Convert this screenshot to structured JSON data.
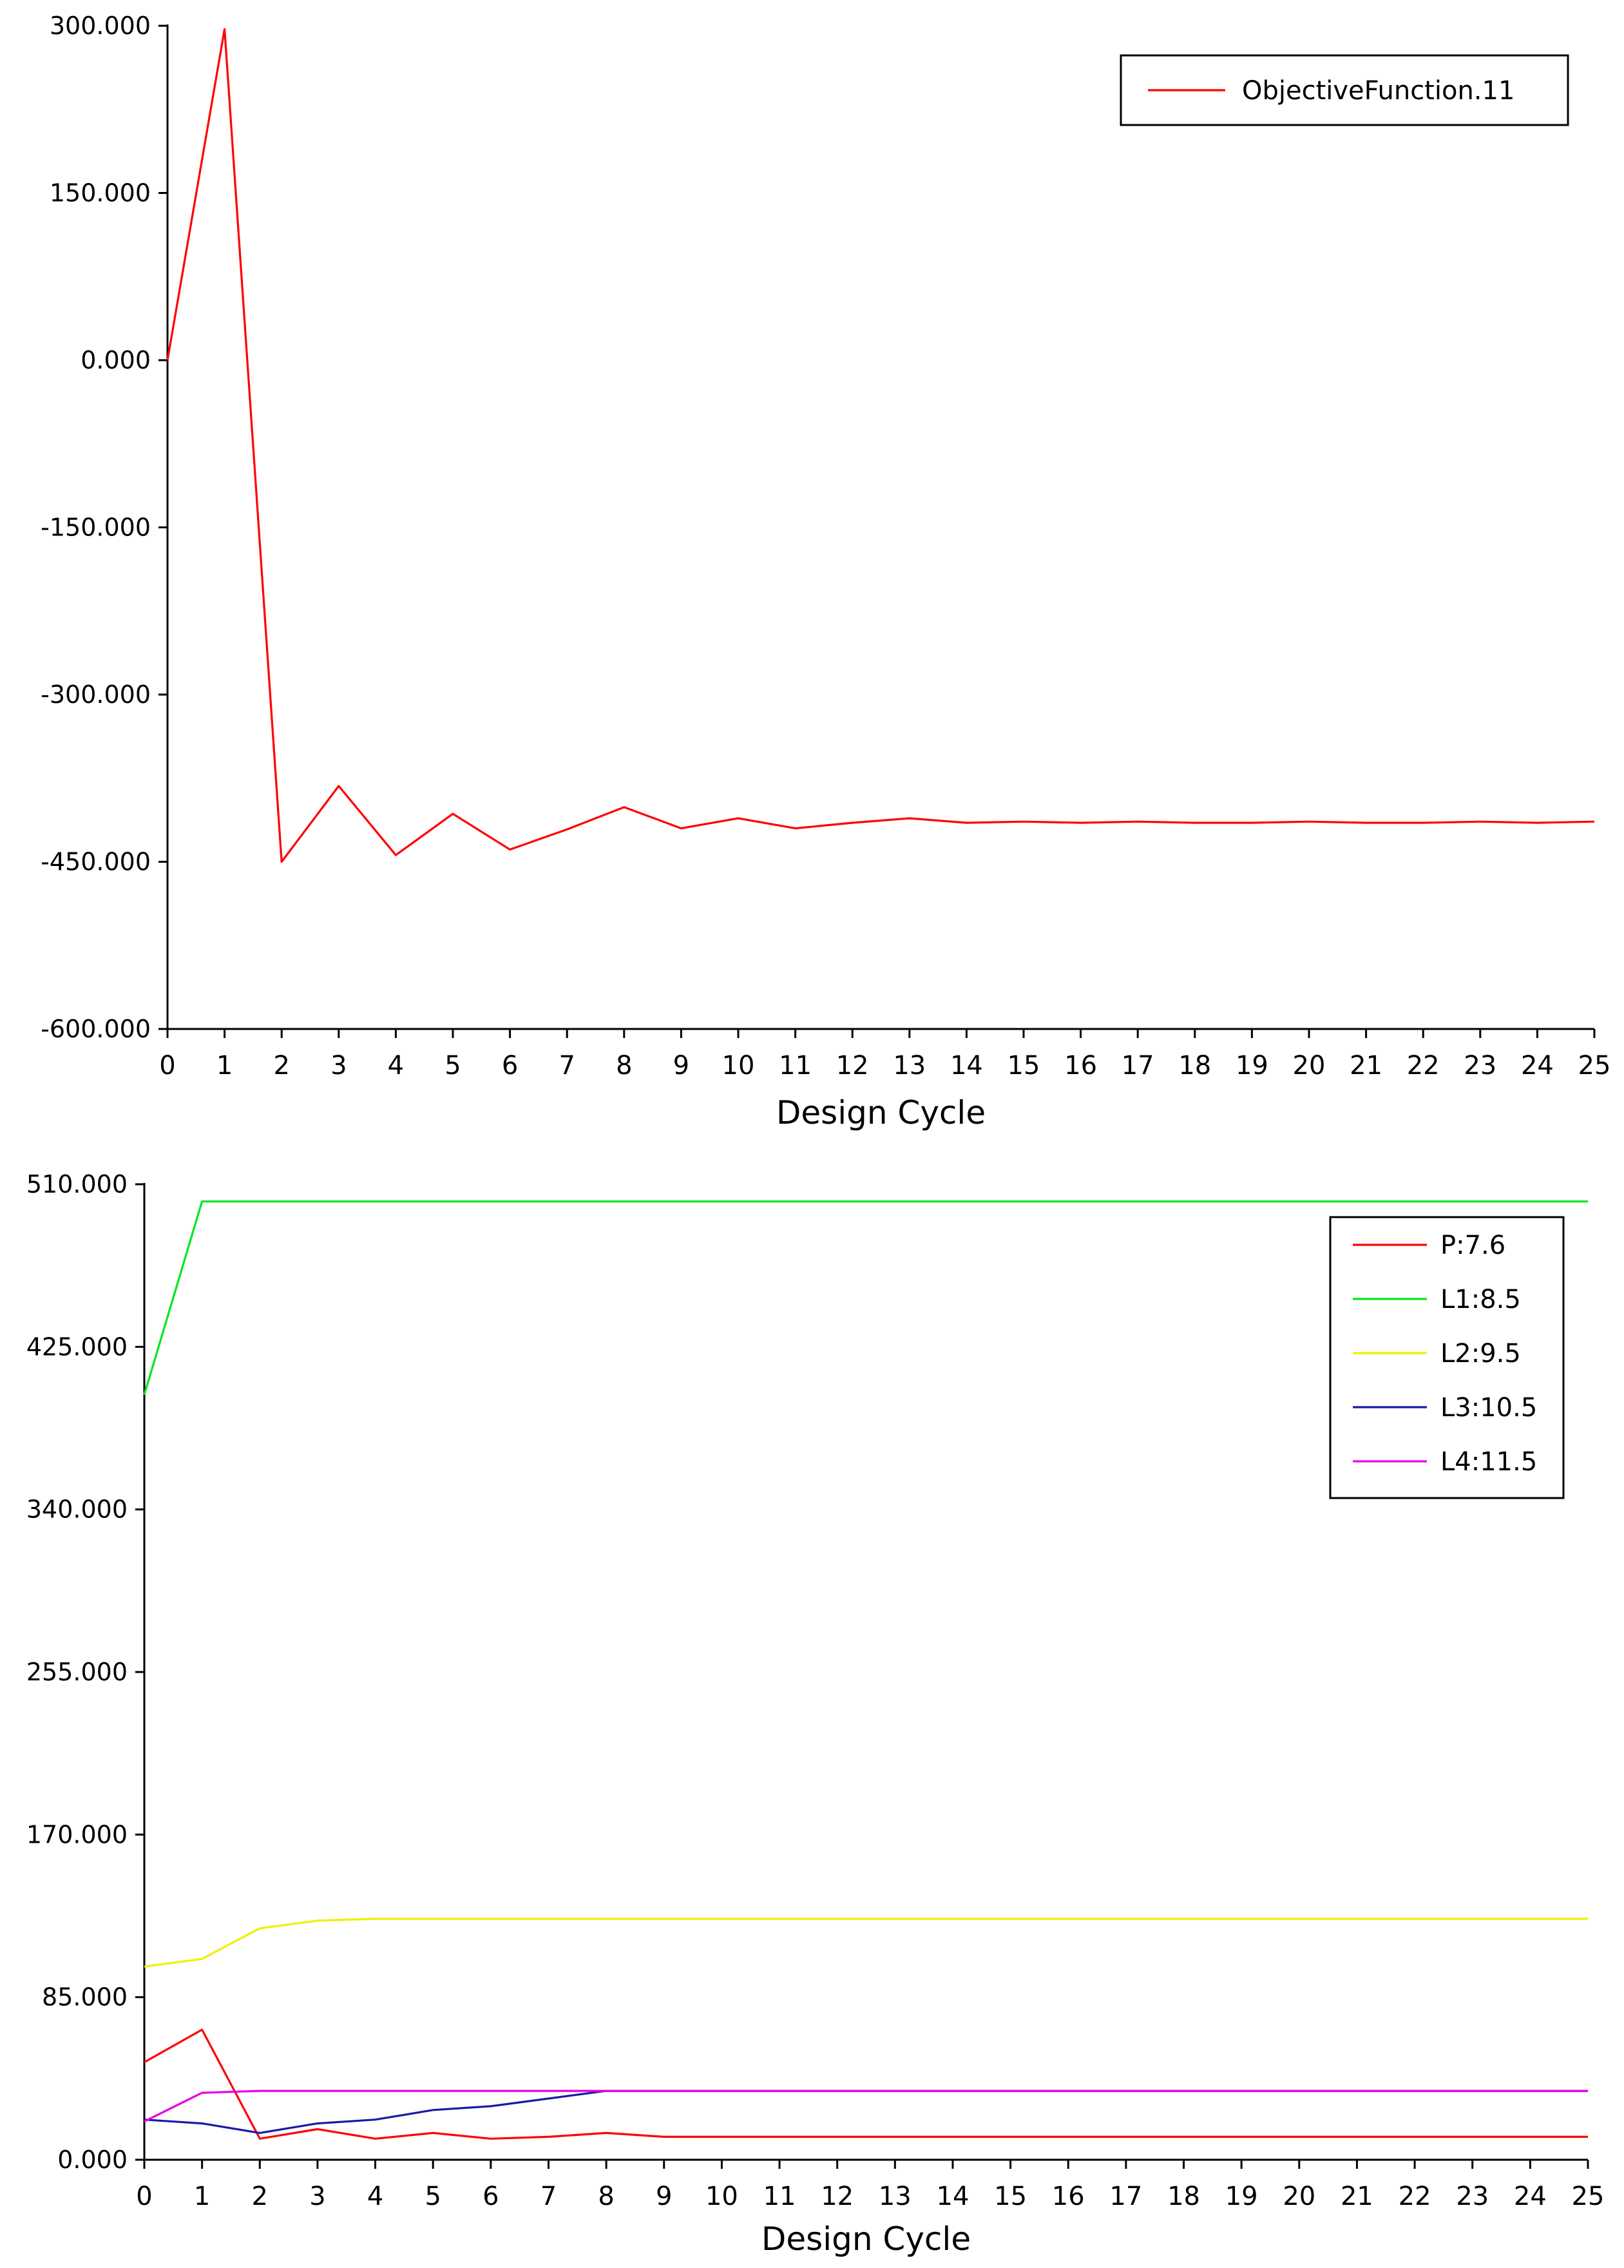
{
  "chart_data": [
    {
      "type": "line",
      "title": "",
      "xlabel": "Design Cycle",
      "ylabel": "",
      "xlim": [
        0,
        25
      ],
      "ylim": [
        -600,
        300
      ],
      "yticks": [
        300,
        150,
        0,
        -150,
        -300,
        -450,
        -600
      ],
      "ytick_labels": [
        "300.000",
        "150.000",
        "0.000",
        "-150.000",
        "-300.000",
        "-450.000",
        "-600.000"
      ],
      "xticks": [
        0,
        1,
        2,
        3,
        4,
        5,
        6,
        7,
        8,
        9,
        10,
        11,
        12,
        13,
        14,
        15,
        16,
        17,
        18,
        19,
        20,
        21,
        22,
        23,
        24,
        25
      ],
      "grid": false,
      "legend_position": "top-right",
      "x": [
        0,
        1,
        2,
        3,
        4,
        5,
        6,
        7,
        8,
        9,
        10,
        11,
        12,
        13,
        14,
        15,
        16,
        17,
        18,
        19,
        20,
        21,
        22,
        23,
        24,
        25
      ],
      "series": [
        {
          "name": "ObjectiveFunction.11",
          "color": "#ff0000",
          "values": [
            0,
            297,
            -450,
            -382,
            -444,
            -407,
            -439,
            -421,
            -401,
            -420,
            -411,
            -420,
            -415,
            -411,
            -415,
            -414,
            -415,
            -414,
            -415,
            -415,
            -414,
            -415,
            -415,
            -414,
            -415,
            -414
          ]
        }
      ]
    },
    {
      "type": "line",
      "title": "",
      "xlabel": "Design Cycle",
      "ylabel": "",
      "xlim": [
        0,
        25
      ],
      "ylim": [
        0,
        510
      ],
      "yticks": [
        510,
        425,
        340,
        255,
        170,
        85,
        0
      ],
      "ytick_labels": [
        "510.000",
        "425.000",
        "340.000",
        "255.000",
        "170.000",
        "85.000",
        "0.000"
      ],
      "xticks": [
        0,
        1,
        2,
        3,
        4,
        5,
        6,
        7,
        8,
        9,
        10,
        11,
        12,
        13,
        14,
        15,
        16,
        17,
        18,
        19,
        20,
        21,
        22,
        23,
        24,
        25
      ],
      "grid": false,
      "legend_position": "top-right",
      "x": [
        0,
        1,
        2,
        3,
        4,
        5,
        6,
        7,
        8,
        9,
        10,
        11,
        12,
        13,
        14,
        15,
        16,
        17,
        18,
        19,
        20,
        21,
        22,
        23,
        24,
        25
      ],
      "series": [
        {
          "name": "P:7.6",
          "color": "#ff0000",
          "values": [
            51,
            68,
            11,
            16,
            11,
            14,
            11,
            12,
            14,
            12,
            12,
            12,
            12,
            12,
            12,
            12,
            12,
            12,
            12,
            12,
            12,
            12,
            12,
            12,
            12,
            12
          ]
        },
        {
          "name": "L1:8.5",
          "color": "#00e626",
          "values": [
            400,
            501,
            501,
            501,
            501,
            501,
            501,
            501,
            501,
            501,
            501,
            501,
            501,
            501,
            501,
            501,
            501,
            501,
            501,
            501,
            501,
            501,
            501,
            501,
            501,
            501
          ]
        },
        {
          "name": "L2:9.5",
          "color": "#f0f000",
          "values": [
            101,
            105,
            121,
            125,
            126,
            126,
            126,
            126,
            126,
            126,
            126,
            126,
            126,
            126,
            126,
            126,
            126,
            126,
            126,
            126,
            126,
            126,
            126,
            126,
            126,
            126
          ]
        },
        {
          "name": "L3:10.5",
          "color": "#1a1aa8",
          "values": [
            21,
            19,
            14,
            19,
            21,
            26,
            28,
            32,
            36,
            36,
            36,
            36,
            36,
            36,
            36,
            36,
            36,
            36,
            36,
            36,
            36,
            36,
            36,
            36,
            36,
            36
          ]
        },
        {
          "name": "L4:11.5",
          "color": "#e600e6",
          "values": [
            20,
            35,
            36,
            36,
            36,
            36,
            36,
            36,
            36,
            36,
            36,
            36,
            36,
            36,
            36,
            36,
            36,
            36,
            36,
            36,
            36,
            36,
            36,
            36,
            36,
            36
          ]
        }
      ]
    }
  ]
}
